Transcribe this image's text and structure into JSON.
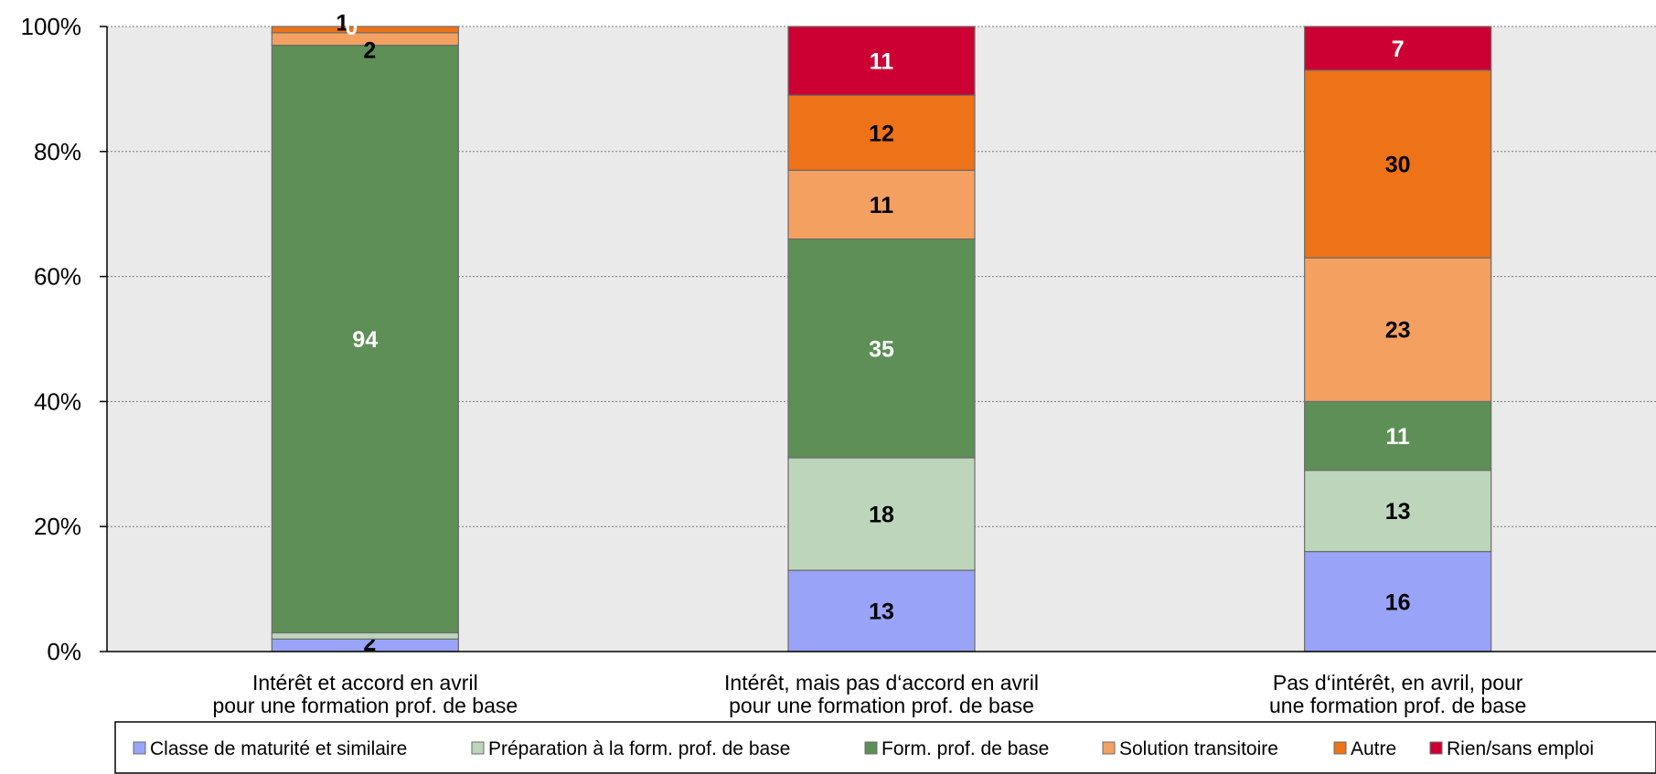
{
  "chart_data": {
    "type": "bar",
    "stacked": true,
    "percent": true,
    "title": "",
    "xlabel": "",
    "ylabel": "",
    "ylim": [
      0,
      100
    ],
    "yticks": [
      "0%",
      "20%",
      "40%",
      "60%",
      "80%",
      "100%"
    ],
    "grid": true,
    "legend_position": "bottom",
    "categories": [
      [
        "Intérêt et accord en avril",
        "pour une formation prof. de base"
      ],
      [
        "Intérêt, mais pas d‘accord en avril",
        "pour une formation prof. de base"
      ],
      [
        "Pas d‘intérêt, en avril, pour",
        "une formation prof. de base"
      ]
    ],
    "series": [
      {
        "name": "Classe de maturité et similaire",
        "color": "#99a3f7",
        "label_color": "#000000",
        "values": [
          2,
          13,
          16
        ],
        "labels": [
          "2",
          "13",
          "16"
        ]
      },
      {
        "name": "Préparation à la form. prof. de base",
        "color": "#bdd6bb",
        "label_color": "#000000",
        "values": [
          1,
          18,
          13
        ],
        "labels": [
          "1",
          "18",
          "13"
        ]
      },
      {
        "name": "Form. prof. de base",
        "color": "#5d8f57",
        "label_color": "#ffffff",
        "values": [
          94,
          35,
          11
        ],
        "labels": [
          "94",
          "35",
          "11"
        ]
      },
      {
        "name": "Solution transitoire",
        "color": "#f4a061",
        "label_color": "#000000",
        "values": [
          2,
          11,
          23
        ],
        "labels": [
          "2",
          "11",
          "23"
        ]
      },
      {
        "name": "Autre",
        "color": "#ee7217",
        "label_color": "#000000",
        "values": [
          1,
          12,
          30
        ],
        "labels": [
          "1",
          "12",
          "30"
        ]
      },
      {
        "name": "Rien/sans emploi",
        "color": "#cc0033",
        "label_color": "#ffffff",
        "values": [
          0,
          11,
          7
        ],
        "labels": [
          "0",
          "11",
          "7"
        ]
      }
    ]
  }
}
